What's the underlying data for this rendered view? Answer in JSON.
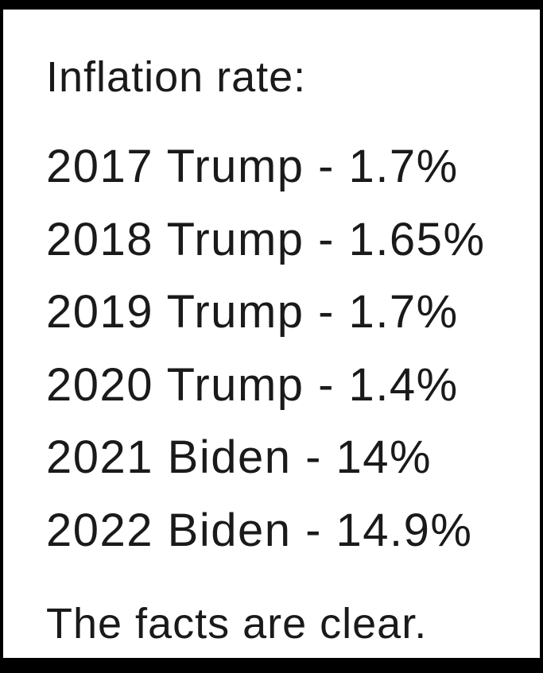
{
  "title": "Inflation rate:",
  "lines": [
    "2017 Trump - 1.7%",
    "2018 Trump - 1.65%",
    "2019 Trump - 1.7%",
    "2020 Trump - 1.4%",
    "2021 Biden - 14%",
    "2022 Biden - 14.9%"
  ],
  "footer": "The facts are clear."
}
